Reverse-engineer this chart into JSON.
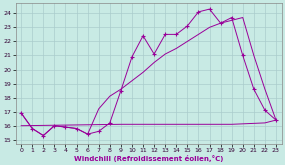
{
  "xlabel": "Windchill (Refroidissement éolien,°C)",
  "background_color": "#c8eae4",
  "grid_color": "#aacccc",
  "line_color": "#990099",
  "xlim": [
    -0.5,
    23.5
  ],
  "ylim": [
    14.7,
    24.7
  ],
  "yticks": [
    15,
    16,
    17,
    18,
    19,
    20,
    21,
    22,
    23,
    24
  ],
  "xticks": [
    0,
    1,
    2,
    3,
    4,
    5,
    6,
    7,
    8,
    9,
    10,
    11,
    12,
    13,
    14,
    15,
    16,
    17,
    18,
    19,
    20,
    21,
    22,
    23
  ],
  "series1_x": [
    0,
    1,
    2,
    3,
    4,
    5,
    6,
    7,
    8,
    9,
    10,
    11,
    12,
    13,
    14,
    15,
    16,
    17,
    18,
    19,
    20,
    21,
    22,
    23
  ],
  "series1_y": [
    16.9,
    15.8,
    15.3,
    16.0,
    15.9,
    15.8,
    15.4,
    15.6,
    16.2,
    18.5,
    20.9,
    22.4,
    21.1,
    22.5,
    22.5,
    23.1,
    24.1,
    24.3,
    23.3,
    23.7,
    21.0,
    18.6,
    17.1,
    16.4
  ],
  "series2_x": [
    0,
    1,
    2,
    3,
    4,
    5,
    6,
    7,
    8,
    9,
    10,
    11,
    12,
    13,
    14,
    15,
    16,
    17,
    18,
    19,
    20,
    21,
    22,
    23
  ],
  "series2_y": [
    16.9,
    15.8,
    15.3,
    16.0,
    15.9,
    15.8,
    15.4,
    17.2,
    18.1,
    18.6,
    19.2,
    19.8,
    20.5,
    21.1,
    21.5,
    22.0,
    22.5,
    23.0,
    23.3,
    23.5,
    23.7,
    21.0,
    18.6,
    16.4
  ],
  "series3_x": [
    0,
    9,
    14,
    19,
    22,
    23
  ],
  "series3_y": [
    16.0,
    16.1,
    16.1,
    16.1,
    16.2,
    16.4
  ]
}
